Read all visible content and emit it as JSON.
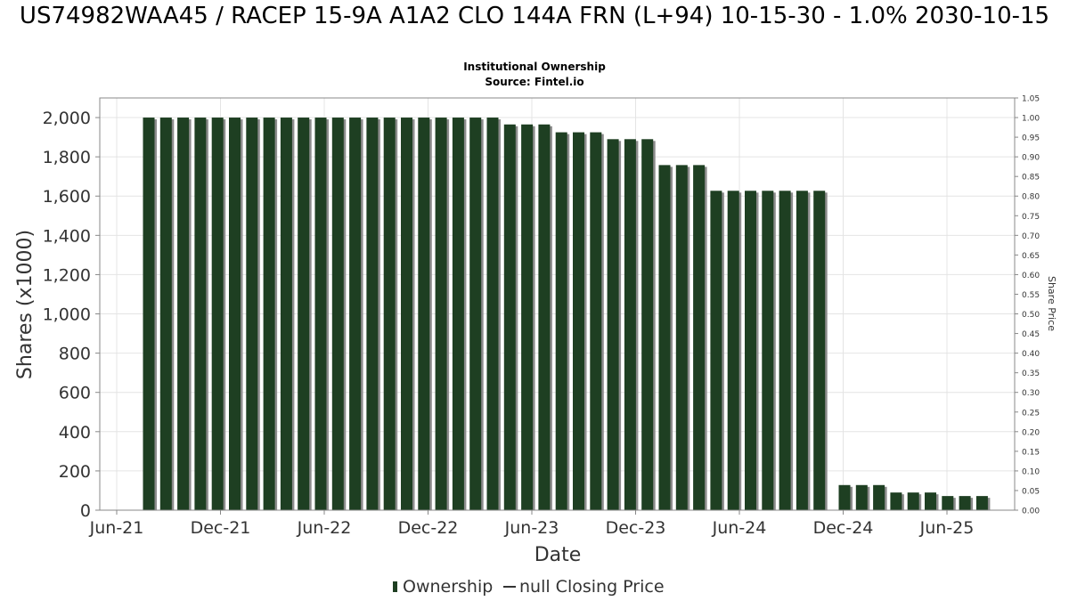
{
  "chart_data": {
    "type": "bar",
    "title": "US74982WAA45 / RACEP 15-9A A1A2 CLO 144A FRN (L+94) 10-15-30 - 1.0% 2030-10-15",
    "subtitle_lines": [
      "Institutional Ownership",
      "Source: Fintel.io"
    ],
    "xlabel": "Date",
    "ylabel": "Shares (x1000)",
    "y2label": "Share Price",
    "ylim": [
      0,
      2100
    ],
    "y2lim": [
      0,
      1.05
    ],
    "yticks": [
      0,
      200,
      400,
      600,
      800,
      1000,
      1200,
      1400,
      1600,
      1800,
      2000
    ],
    "ytick_labels": [
      "0",
      "200",
      "400",
      "600",
      "800",
      "1,000",
      "1,200",
      "1,400",
      "1,600",
      "1,800",
      "2,000"
    ],
    "y2tick_labels": [
      "0.00",
      "0.05",
      "0.10",
      "0.15",
      "0.20",
      "0.25",
      "0.30",
      "0.35",
      "0.40",
      "0.45",
      "0.50",
      "0.55",
      "0.60",
      "0.65",
      "0.70",
      "0.75",
      "0.80",
      "0.85",
      "0.90",
      "0.95",
      "1.00",
      "1.05"
    ],
    "xtick_labels": [
      "Jun-21",
      "Dec-21",
      "Jun-22",
      "Dec-22",
      "Jun-23",
      "Dec-23",
      "Jun-24",
      "Dec-24",
      "Jun-25"
    ],
    "grid": true,
    "legend": [
      "Ownership",
      "null Closing Price"
    ],
    "legend_position": "bottom",
    "colors": {
      "bar": "#1e3f22",
      "bar_shadow": "#8c8c8c",
      "grid": "#e4e4e4"
    },
    "series": [
      {
        "name": "Ownership",
        "values": [
          2000,
          2000,
          2000,
          2000,
          2000,
          2000,
          2000,
          2000,
          2000,
          2000,
          2000,
          2000,
          2000,
          2000,
          2000,
          2000,
          2000,
          2000,
          2000,
          2000,
          2000,
          1965,
          1965,
          1965,
          1925,
          1925,
          1925,
          1890,
          1890,
          1890,
          1758,
          1758,
          1758,
          1627,
          1627,
          1627,
          1627,
          1627,
          1627,
          1627,
          128,
          128,
          128,
          90,
          90,
          90,
          72,
          72,
          72
        ]
      }
    ]
  }
}
